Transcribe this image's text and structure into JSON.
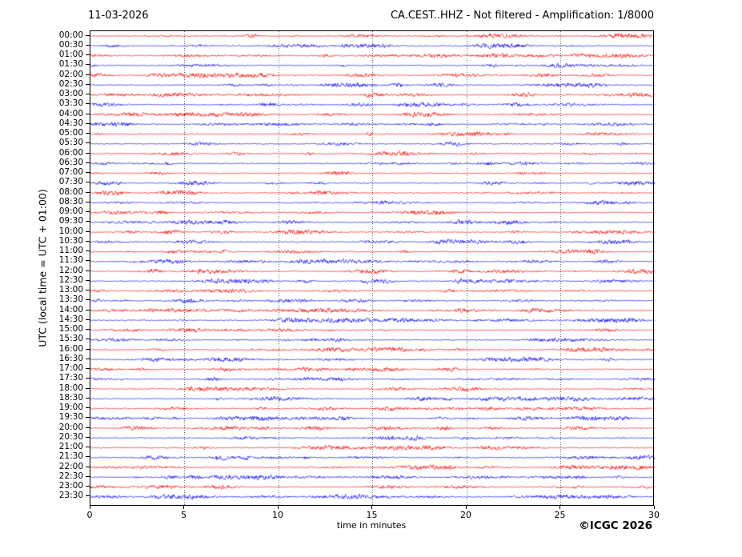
{
  "figure": {
    "title_left": "11-03-2026",
    "title_right": "CA.CEST..HHZ - Not filtered - Amplification: 1/8000",
    "y_axis_label": "UTC (local time = UTC + 01:00)",
    "x_axis_label": "time in minutes",
    "copyright": "©ICGC 2026"
  },
  "chart_data": {
    "type": "line",
    "variant": "helicorder-seismogram",
    "title": "CA.CEST..HHZ - Not filtered - Amplification: 1/8000",
    "date": "11-03-2026",
    "xlabel": "time in minutes",
    "ylabel": "UTC (local time = UTC + 01:00)",
    "xlim": [
      0,
      30
    ],
    "x_ticks": [
      0,
      5,
      10,
      15,
      20,
      25,
      30
    ],
    "grid": {
      "vertical": true,
      "style": "dotted",
      "interval_minutes": 5,
      "color": "#6e6e6e"
    },
    "minutes_per_row": 30,
    "n_rows": 48,
    "rows": [
      "00:00",
      "00:30",
      "01:00",
      "01:30",
      "02:00",
      "02:30",
      "03:00",
      "03:30",
      "04:00",
      "04:30",
      "05:00",
      "05:30",
      "06:00",
      "06:30",
      "07:00",
      "07:30",
      "08:00",
      "08:30",
      "09:00",
      "09:30",
      "10:00",
      "10:30",
      "11:00",
      "11:30",
      "12:00",
      "12:30",
      "13:00",
      "13:30",
      "14:00",
      "14:30",
      "15:00",
      "15:30",
      "16:00",
      "16:30",
      "17:00",
      "17:30",
      "18:00",
      "18:30",
      "19:00",
      "19:30",
      "20:00",
      "20:30",
      "21:00",
      "21:30",
      "22:00",
      "22:30",
      "23:00",
      "23:30"
    ],
    "trace_color_even_rows": "#ff0000",
    "trace_color_odd_rows": "#0000ff",
    "waveform": "continuous low-amplitude ambient seismic noise with intermittent small bursts; no distinct large event",
    "noise_seed": 20260311
  }
}
